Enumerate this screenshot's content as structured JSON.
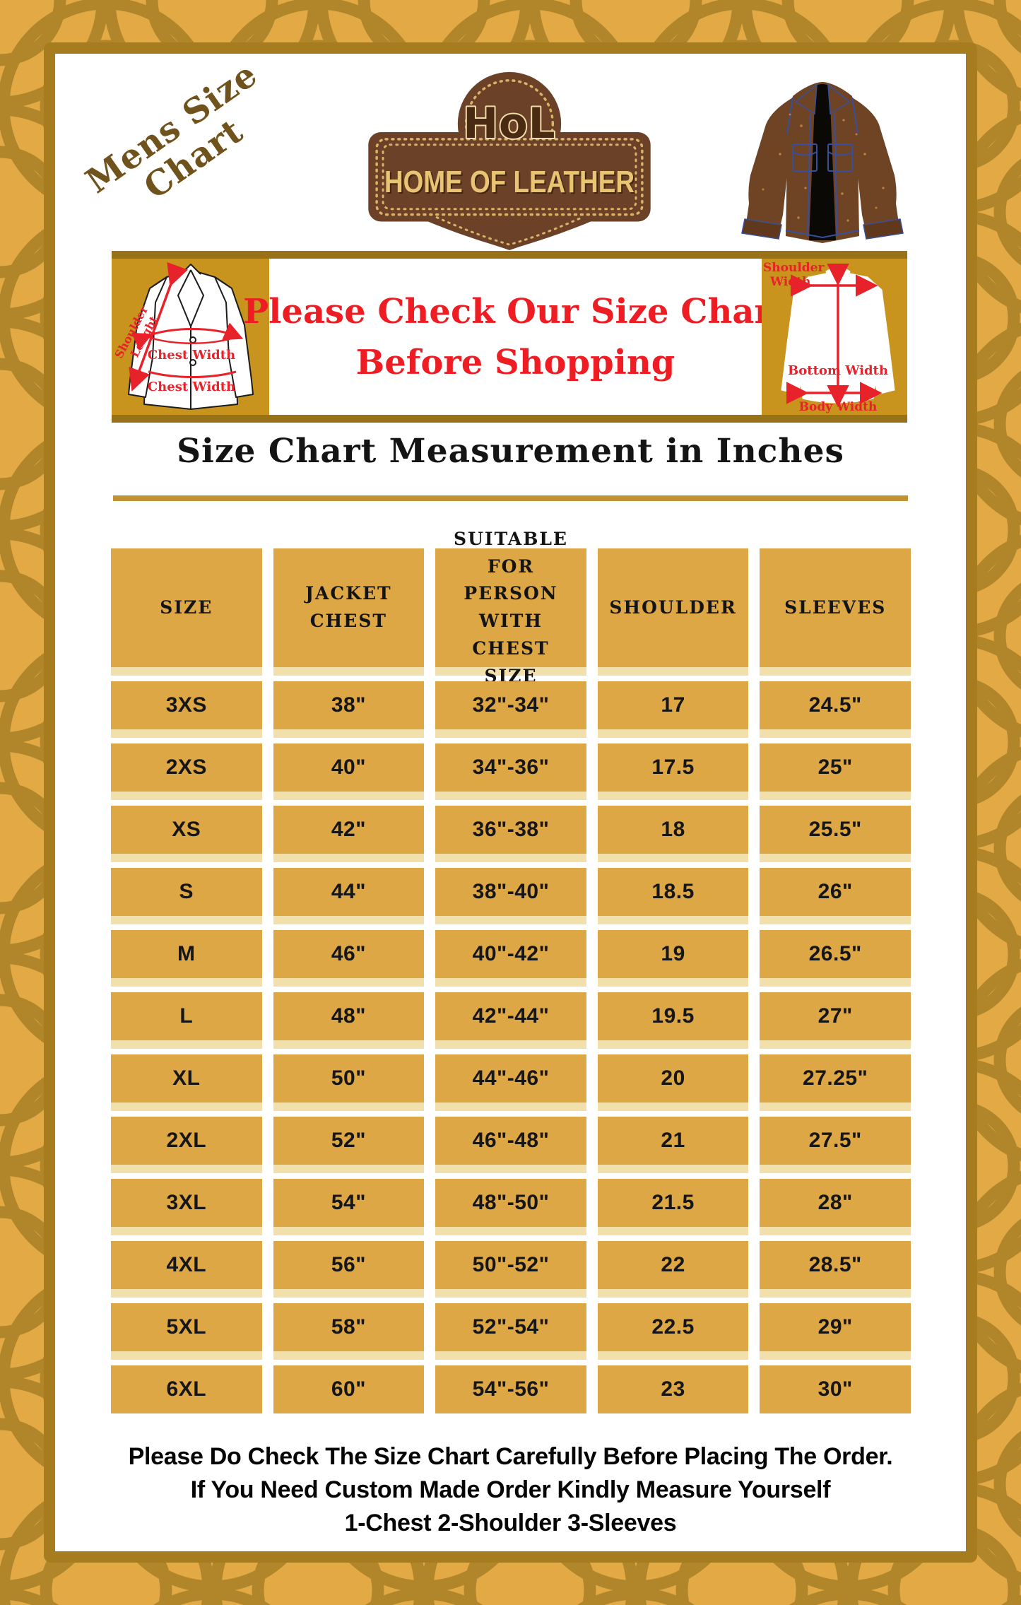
{
  "corner_title": {
    "line1": "Mens Size",
    "line2": "Chart"
  },
  "logo": {
    "monogram": "HoL",
    "brand": "HOME OF LEATHER"
  },
  "banner": {
    "line1": "Please Check Our Size Chart",
    "line2": "Before Shopping",
    "front_diagram": {
      "shoulder_line1": "Shoulder",
      "shoulder_line2": "Lenght",
      "chest_label_1": "Chest Width",
      "chest_label_2": "Chest Width"
    },
    "back_diagram": {
      "shoulder_line1": "Shoulder",
      "shoulder_line2": "Width",
      "bottom_label": "Bottom Width",
      "body_label": "Body Width"
    }
  },
  "section_heading": "Size Chart Measurement in Inches",
  "table": {
    "columns": [
      "SIZE",
      "JACKET\nCHEST",
      "SUITABLE\nFOR PERSON\nWITH CHEST\nSIZE",
      "SHOULDER",
      "SLEEVES"
    ],
    "rows": [
      [
        "3XS",
        "38\"",
        "32\"-34\"",
        "17",
        "24.5\""
      ],
      [
        "2XS",
        "40\"",
        "34\"-36\"",
        "17.5",
        "25\""
      ],
      [
        "XS",
        "42\"",
        "36\"-38\"",
        "18",
        "25.5\""
      ],
      [
        "S",
        "44\"",
        "38\"-40\"",
        "18.5",
        "26\""
      ],
      [
        "M",
        "46\"",
        "40\"-42\"",
        "19",
        "26.5\""
      ],
      [
        "L",
        "48\"",
        "42\"-44\"",
        "19.5",
        "27\""
      ],
      [
        "XL",
        "50\"",
        "44\"-46\"",
        "20",
        "27.25\""
      ],
      [
        "2XL",
        "52\"",
        "46\"-48\"",
        "21",
        "27.5\""
      ],
      [
        "3XL",
        "54\"",
        "48\"-50\"",
        "21.5",
        "28\""
      ],
      [
        "4XL",
        "56\"",
        "50\"-52\"",
        "22",
        "28.5\""
      ],
      [
        "5XL",
        "58\"",
        "52\"-54\"",
        "22.5",
        "29\""
      ],
      [
        "6XL",
        "60\"",
        "54\"-56\"",
        "23",
        "30\""
      ]
    ]
  },
  "footer": {
    "line1": "Please Do Check The Size Chart Carefully Before Placing The Order.",
    "line2": "If You Need Custom Made Order Kindly Measure Yourself",
    "line3": "1-Chest 2-Shoulder 3-Sleeves"
  },
  "colors": {
    "accent_red": "#ee1d24",
    "table_gold": "#dda746",
    "separator_cream": "#f1e0ac",
    "panel_gold": "#c8941e",
    "strip_dark_gold": "#997119",
    "logo_brown": "#6b4227",
    "mustard_border": "#e2a945",
    "arc_dark_gold": "#b1862b",
    "frame_gold": "#a67c1e"
  }
}
